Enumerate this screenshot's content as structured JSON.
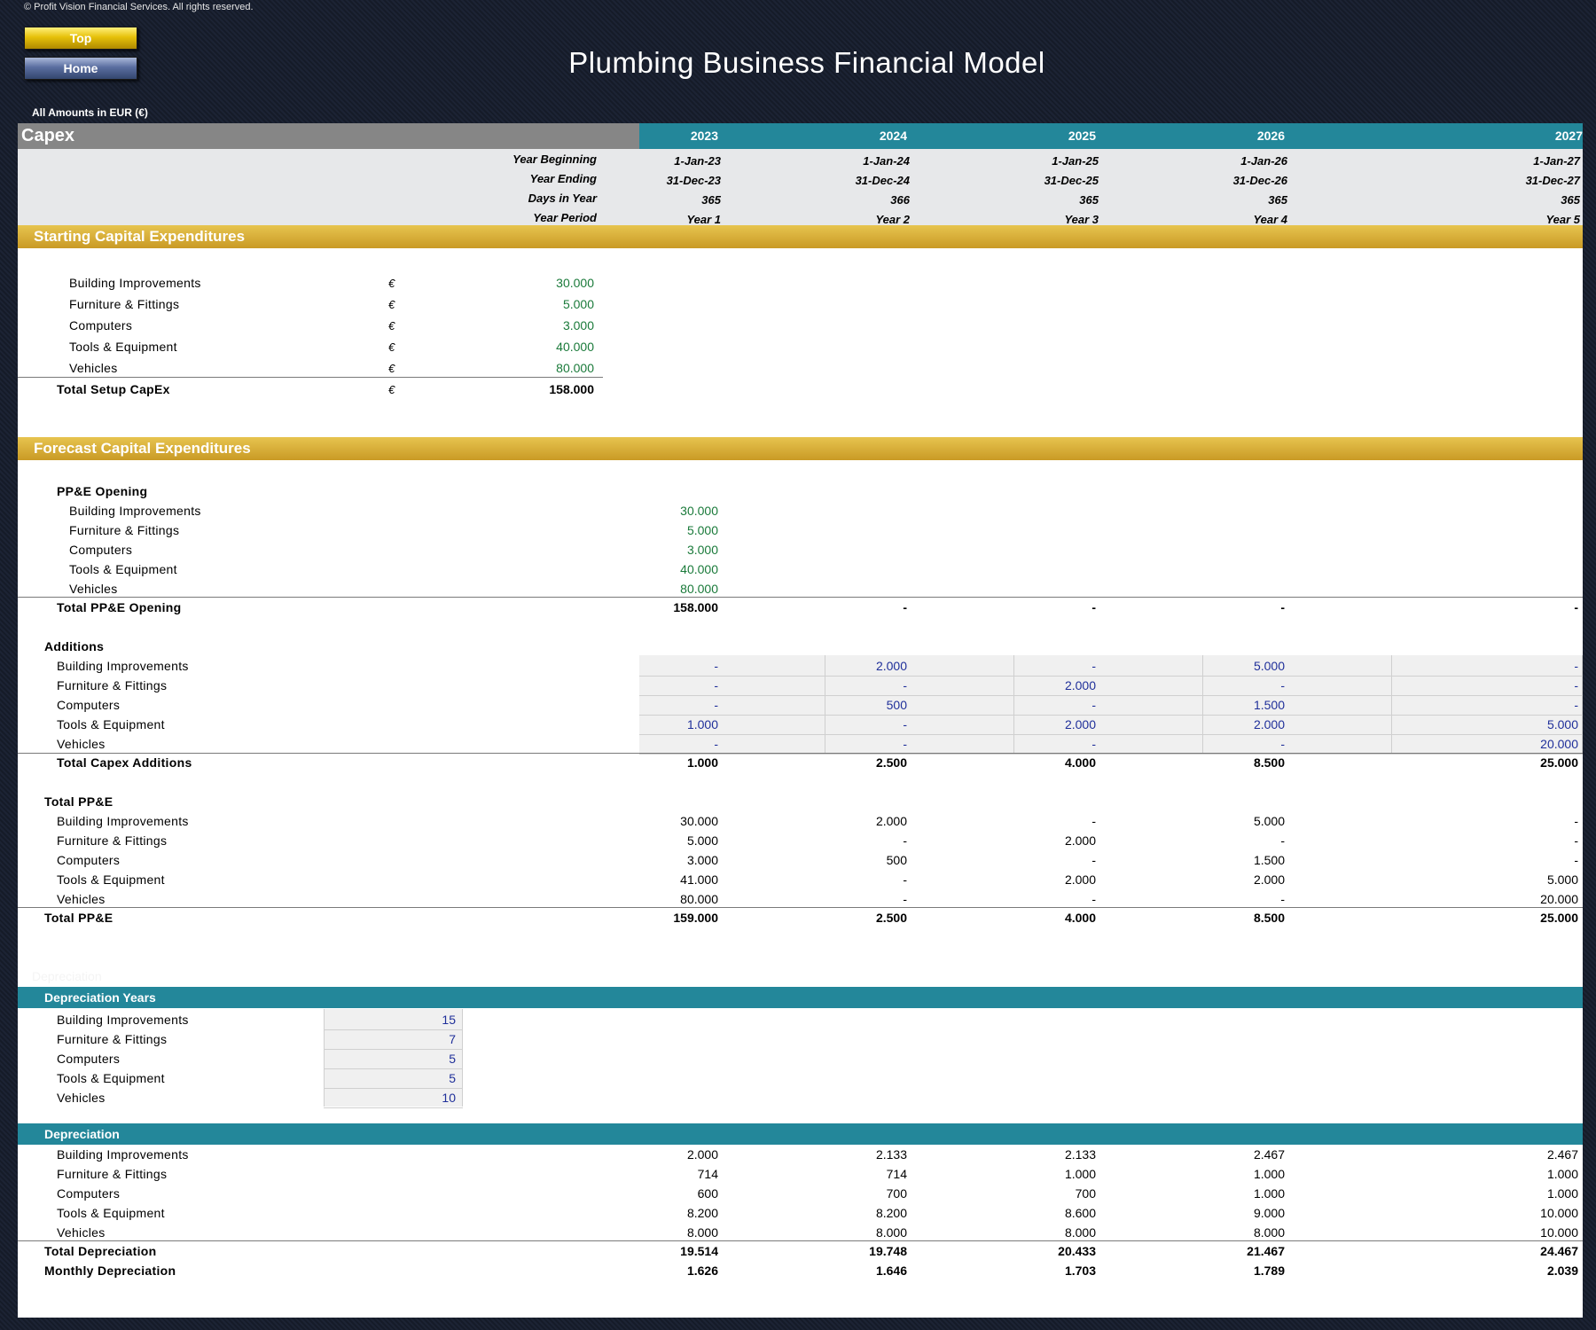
{
  "header": {
    "copyright": "© Profit Vision Financial Services. All rights reserved.",
    "top_button": "Top",
    "home_button": "Home",
    "title": "Plumbing Business Financial Model",
    "amounts": "All Amounts in  EUR (€)"
  },
  "sheet": {
    "title": "Capex",
    "years": [
      "2023",
      "2024",
      "2025",
      "2026",
      "2027"
    ],
    "meta_labels": [
      "Year Beginning",
      "Year Ending",
      "Days in Year",
      "Year Period"
    ],
    "meta_values": [
      [
        "1-Jan-23",
        "1-Jan-24",
        "1-Jan-25",
        "1-Jan-26",
        "1-Jan-27"
      ],
      [
        "31-Dec-23",
        "31-Dec-24",
        "31-Dec-25",
        "31-Dec-26",
        "31-Dec-27"
      ],
      [
        "365",
        "366",
        "365",
        "365",
        "365"
      ],
      [
        "Year 1",
        "Year 2",
        "Year 3",
        "Year 4",
        "Year 5"
      ]
    ]
  },
  "starting": {
    "section_title": "Starting Capital Expenditures",
    "currency": "€",
    "items": [
      {
        "label": "Building Improvements",
        "value": "30.000"
      },
      {
        "label": "Furniture & Fittings",
        "value": "5.000"
      },
      {
        "label": "Computers",
        "value": "3.000"
      },
      {
        "label": "Tools & Equipment",
        "value": "40.000"
      },
      {
        "label": "Vehicles",
        "value": "80.000"
      }
    ],
    "total_label": "Total Setup CapEx",
    "total_value": "158.000"
  },
  "forecast": {
    "section_title": "Forecast Capital Expenditures",
    "opening_header": "PP&E Opening",
    "opening_items": [
      {
        "label": "Building Improvements",
        "value": "30.000"
      },
      {
        "label": "Furniture & Fittings",
        "value": "5.000"
      },
      {
        "label": "Computers",
        "value": "3.000"
      },
      {
        "label": "Tools & Equipment",
        "value": "40.000"
      },
      {
        "label": "Vehicles",
        "value": "80.000"
      }
    ],
    "opening_total_label": "Total PP&E Opening",
    "opening_total_values": [
      "158.000",
      "-",
      "-",
      "-",
      "-"
    ],
    "additions_header": "Additions",
    "additions": [
      {
        "label": "Building Improvements",
        "values": [
          "-",
          "2.000",
          "-",
          "5.000",
          "-"
        ]
      },
      {
        "label": "Furniture & Fittings",
        "values": [
          "-",
          "-",
          "2.000",
          "-",
          "-"
        ]
      },
      {
        "label": "Computers",
        "values": [
          "-",
          "500",
          "-",
          "1.500",
          "-"
        ]
      },
      {
        "label": "Tools & Equipment",
        "values": [
          "1.000",
          "-",
          "2.000",
          "2.000",
          "5.000"
        ]
      },
      {
        "label": "Vehicles",
        "values": [
          "-",
          "-",
          "-",
          "-",
          "20.000"
        ]
      }
    ],
    "additions_total_label": "Total Capex Additions",
    "additions_total_values": [
      "1.000",
      "2.500",
      "4.000",
      "8.500",
      "25.000"
    ],
    "ppe_header": "Total PP&E",
    "ppe": [
      {
        "label": "Building Improvements",
        "values": [
          "30.000",
          "2.000",
          "-",
          "5.000",
          "-"
        ]
      },
      {
        "label": "Furniture & Fittings",
        "values": [
          "5.000",
          "-",
          "2.000",
          "-",
          "-"
        ]
      },
      {
        "label": "Computers",
        "values": [
          "3.000",
          "500",
          "-",
          "1.500",
          "-"
        ]
      },
      {
        "label": "Tools & Equipment",
        "values": [
          "41.000",
          "-",
          "2.000",
          "2.000",
          "5.000"
        ]
      },
      {
        "label": "Vehicles",
        "values": [
          "80.000",
          "-",
          "-",
          "-",
          "20.000"
        ]
      }
    ],
    "ppe_total_label": "Total PP&E",
    "ppe_total_values": [
      "159.000",
      "2.500",
      "4.000",
      "8.500",
      "25.000"
    ]
  },
  "depreciation_years": {
    "faint_label": "Depreciation",
    "section_title": "Depreciation Years",
    "items": [
      {
        "label": "Building Improvements",
        "value": "15"
      },
      {
        "label": "Furniture & Fittings",
        "value": "7"
      },
      {
        "label": "Computers",
        "value": "5"
      },
      {
        "label": "Tools & Equipment",
        "value": "5"
      },
      {
        "label": "Vehicles",
        "value": "10"
      }
    ]
  },
  "depreciation": {
    "section_title": "Depreciation",
    "items": [
      {
        "label": "Building Improvements",
        "values": [
          "2.000",
          "2.133",
          "2.133",
          "2.467",
          "2.467"
        ]
      },
      {
        "label": "Furniture & Fittings",
        "values": [
          "714",
          "714",
          "1.000",
          "1.000",
          "1.000"
        ]
      },
      {
        "label": "Computers",
        "values": [
          "600",
          "700",
          "700",
          "1.000",
          "1.000"
        ]
      },
      {
        "label": "Tools & Equipment",
        "values": [
          "8.200",
          "8.200",
          "8.600",
          "9.000",
          "10.000"
        ]
      },
      {
        "label": "Vehicles",
        "values": [
          "8.000",
          "8.000",
          "8.000",
          "8.000",
          "10.000"
        ]
      }
    ],
    "total_label": "Total Depreciation",
    "total_values": [
      "19.514",
      "19.748",
      "20.433",
      "21.467",
      "24.467"
    ],
    "monthly_label": "Monthly Depreciation",
    "monthly_values": [
      "1.626",
      "1.646",
      "1.703",
      "1.789",
      "2.039"
    ]
  }
}
